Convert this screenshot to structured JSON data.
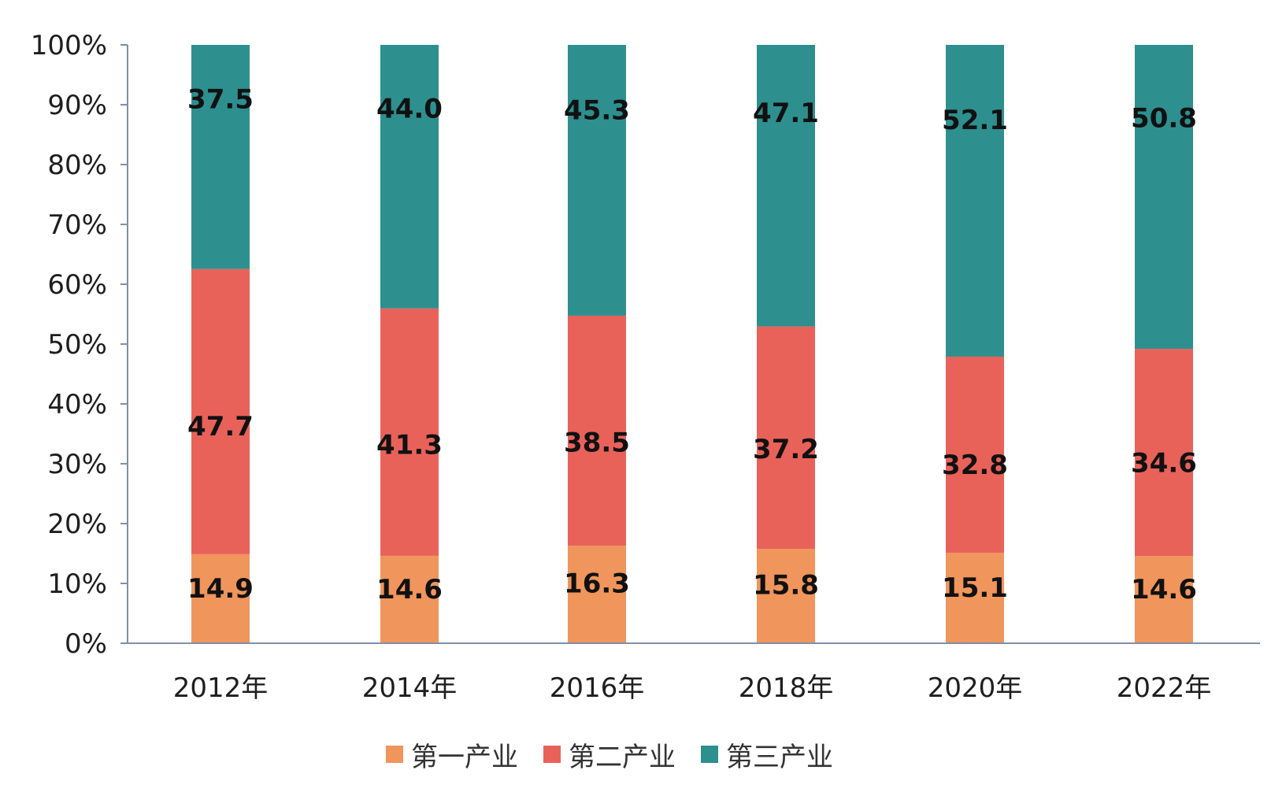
{
  "chart_data": {
    "type": "bar",
    "stacked": true,
    "categories": [
      "2012年",
      "2014年",
      "2016年",
      "2018年",
      "2020年",
      "2022年"
    ],
    "series": [
      {
        "name": "第一产业",
        "values": [
          14.9,
          14.6,
          16.3,
          15.8,
          15.1,
          14.6
        ],
        "color": "#F0955C"
      },
      {
        "name": "第二产业",
        "values": [
          47.7,
          41.3,
          38.5,
          37.2,
          32.8,
          34.6
        ],
        "color": "#E8625A"
      },
      {
        "name": "第三产业",
        "values": [
          37.5,
          44.0,
          45.3,
          47.1,
          52.1,
          50.8
        ],
        "color": "#2E8F8F"
      }
    ],
    "value_labels": [
      [
        "14.9",
        "14.6",
        "16.3",
        "15.8",
        "15.1",
        "14.6"
      ],
      [
        "47.7",
        "41.3",
        "38.5",
        "37.2",
        "32.8",
        "34.6"
      ],
      [
        "37.5",
        "44.0",
        "45.3",
        "47.1",
        "52.1",
        "50.8"
      ]
    ],
    "y_ticks": [
      "0%",
      "10%",
      "20%",
      "30%",
      "40%",
      "50%",
      "60%",
      "70%",
      "80%",
      "90%",
      "100%"
    ],
    "ylim": [
      0,
      100
    ],
    "grid": false,
    "legend_position": "bottom",
    "axis_color": "#7F8FA6"
  }
}
